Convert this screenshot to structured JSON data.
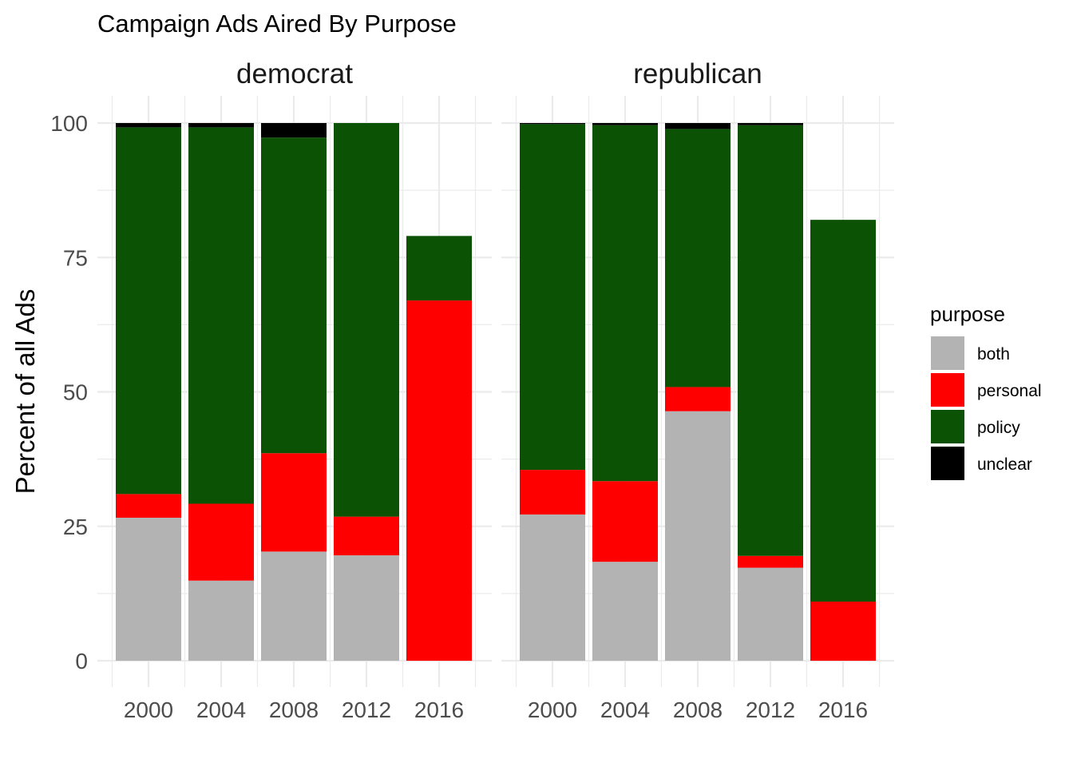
{
  "chart_data": {
    "type": "bar",
    "stacked": true,
    "title": "Campaign Ads Aired By Purpose",
    "ylabel": "Percent of all Ads",
    "xlabel": "",
    "ylim": [
      0,
      100
    ],
    "yticks": [
      0,
      25,
      50,
      75,
      100
    ],
    "grid": true,
    "legend_position": "right",
    "legend_title": "purpose",
    "categories": [
      "2000",
      "2004",
      "2008",
      "2012",
      "2016"
    ],
    "series": [
      {
        "name": "both",
        "color": "#b3b3b3"
      },
      {
        "name": "personal",
        "color": "#ff0000"
      },
      {
        "name": "policy",
        "color": "#0b5205"
      },
      {
        "name": "unclear",
        "color": "#000000"
      }
    ],
    "panels": [
      {
        "label": "democrat",
        "values": {
          "both": [
            26.6,
            14.9,
            20.3,
            19.6,
            0
          ],
          "personal": [
            4.4,
            14.3,
            18.3,
            7.2,
            67
          ],
          "policy": [
            68.2,
            70.0,
            58.7,
            73.2,
            12
          ],
          "unclear": [
            0.8,
            0.8,
            2.7,
            0,
            0
          ]
        }
      },
      {
        "label": "republican",
        "values": {
          "both": [
            27.2,
            18.4,
            46.4,
            17.3,
            0
          ],
          "personal": [
            8.3,
            15.0,
            4.5,
            2.2,
            11
          ],
          "policy": [
            64.3,
            66.2,
            48.0,
            80.1,
            71
          ],
          "unclear": [
            0.2,
            0.4,
            1.1,
            0.4,
            0
          ]
        }
      }
    ],
    "note": "Stacked order bottom-to-top: both, personal, policy, unclear"
  }
}
